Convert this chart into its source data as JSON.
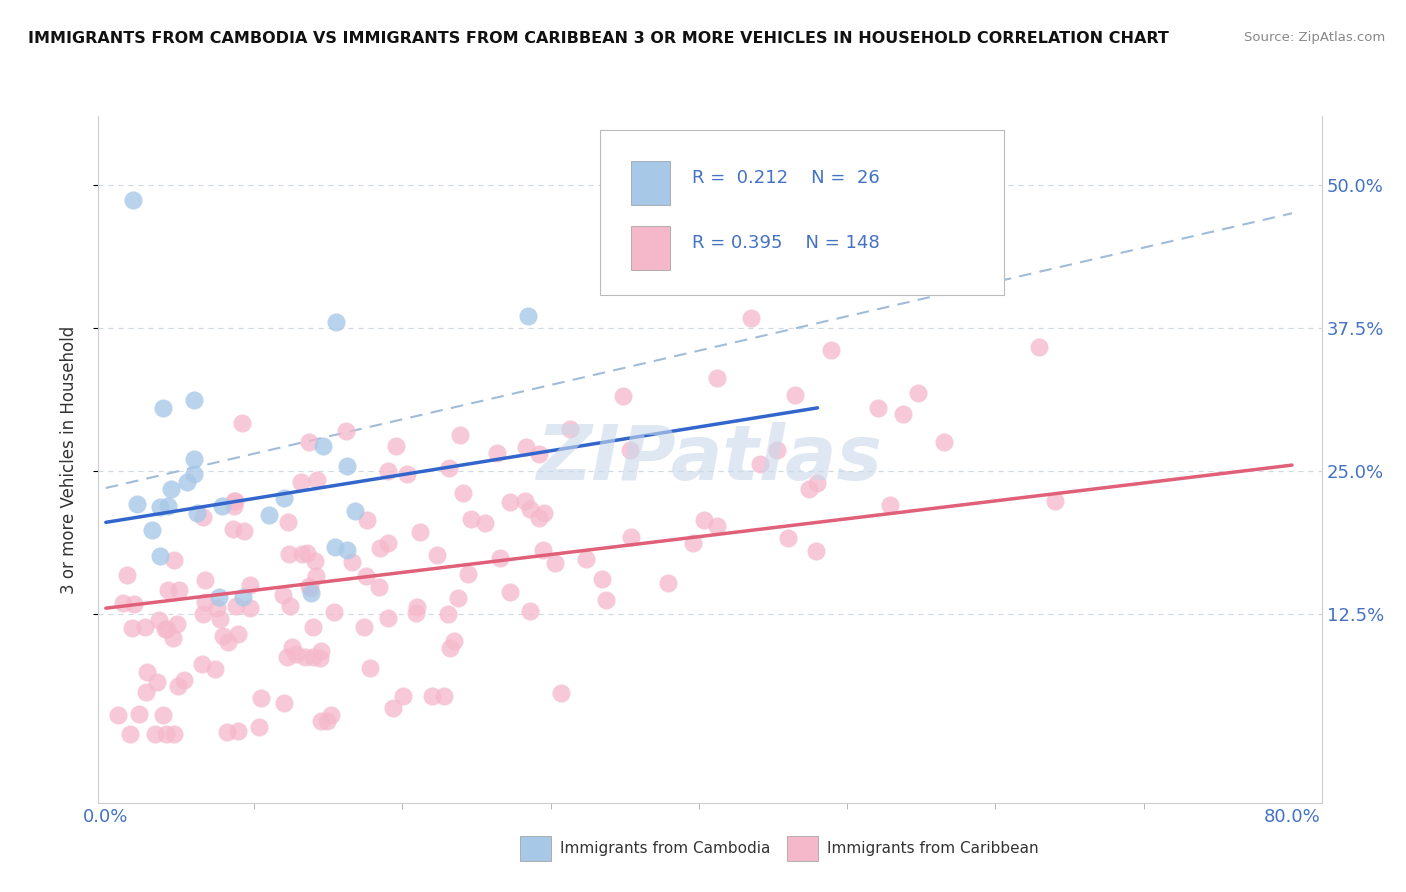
{
  "title": "IMMIGRANTS FROM CAMBODIA VS IMMIGRANTS FROM CARIBBEAN 3 OR MORE VEHICLES IN HOUSEHOLD CORRELATION CHART",
  "source": "Source: ZipAtlas.com",
  "ylabel": "3 or more Vehicles in Household",
  "xlim": [
    -0.005,
    0.82
  ],
  "ylim": [
    -0.04,
    0.56
  ],
  "xtick_positions": [
    0.0,
    0.8
  ],
  "xticklabels": [
    "0.0%",
    "80.0%"
  ],
  "ytick_positions": [
    0.125,
    0.25,
    0.375,
    0.5
  ],
  "yticklabels": [
    "12.5%",
    "25.0%",
    "37.5%",
    "50.0%"
  ],
  "cambodia_color": "#a8c8e8",
  "caribbean_color": "#f5b8cb",
  "cambodia_edge_color": "#7aaad0",
  "caribbean_edge_color": "#e890a8",
  "cambodia_line_color": "#3366cc",
  "caribbean_line_color": "#e0607a",
  "dashed_line_color": "#a0bcd8",
  "tick_color": "#4472c4",
  "label_color": "#333333",
  "grid_color": "#d0d8e0",
  "legend_r1": "0.212",
  "legend_n1": "26",
  "legend_r2": "0.395",
  "legend_n2": "148",
  "cambodia_label": "Immigrants from Cambodia",
  "caribbean_label": "Immigrants from Caribbean",
  "cambodia_R": 0.212,
  "cambodia_N": 26,
  "caribbean_R": 0.395,
  "caribbean_N": 148,
  "watermark": "ZIPatlas",
  "watermark_color": "#c8d8ea"
}
